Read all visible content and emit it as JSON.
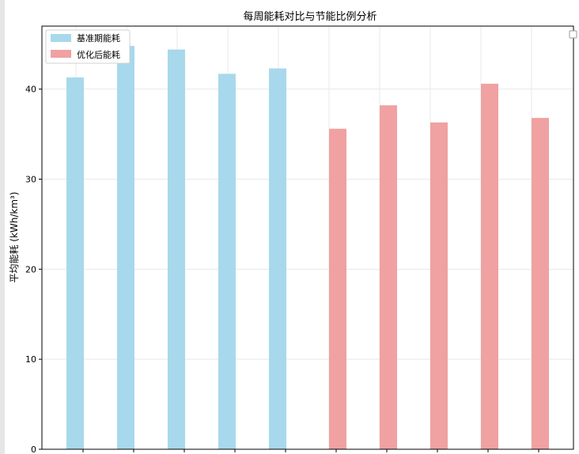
{
  "chart_data": {
    "type": "bar",
    "title": "每周能耗对比与节能比例分析",
    "xlabel": "",
    "ylabel": "平均能耗 (kWh/km³)",
    "ylim": [
      0,
      47
    ],
    "yticks": [
      0,
      10,
      20,
      30,
      40
    ],
    "grid": true,
    "legend_position": "top-left",
    "series": [
      {
        "name": "基准期能耗",
        "color": "#a8d8ec",
        "values": [
          41.3,
          44.8,
          44.4,
          41.7,
          42.3
        ]
      },
      {
        "name": "优化后能耗",
        "color": "#f0a1a1",
        "values": [
          35.6,
          38.2,
          36.3,
          40.6,
          36.8
        ]
      }
    ]
  },
  "colors": {
    "axis": "#000000",
    "grid": "#e8e8e8"
  }
}
